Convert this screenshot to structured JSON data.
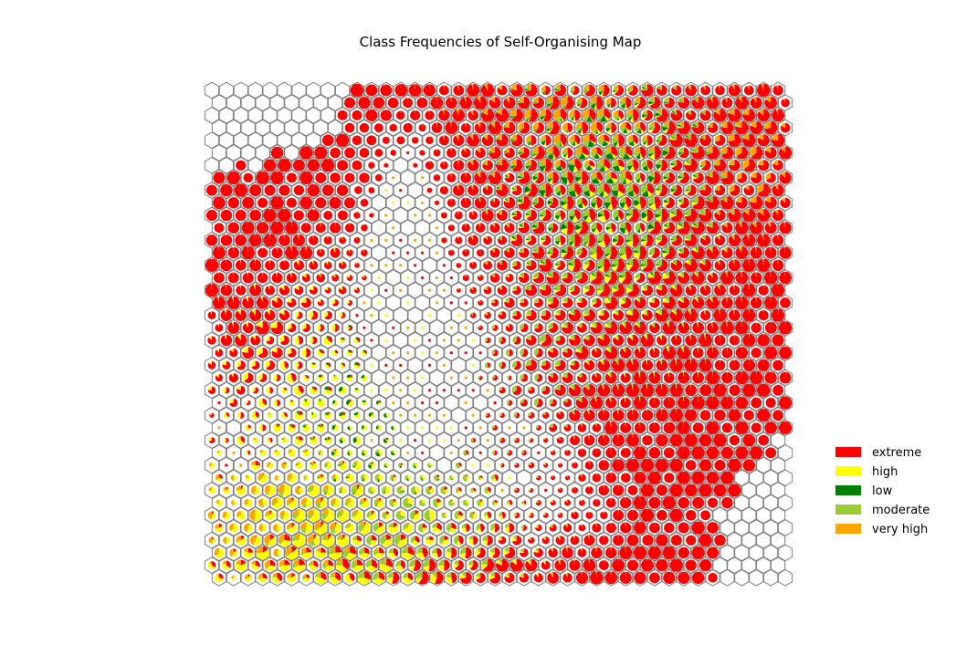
{
  "chart_data": {
    "type": "hexagonal-som-pie-map",
    "title": "Class Frequencies of Self-Organising Map",
    "grid": false,
    "legend_position": "right",
    "classes": [
      {
        "name": "extreme",
        "color": "#ff0000"
      },
      {
        "name": "high",
        "color": "#ffff00"
      },
      {
        "name": "low",
        "color": "#008000"
      },
      {
        "name": "moderate",
        "color": "#9acd32"
      },
      {
        "name": "very high",
        "color": "#ffa500"
      }
    ],
    "hex_outline_color": "#808080",
    "grid_size": {
      "columns": 40,
      "rows": 40
    },
    "pattern_note": "Dense extreme (red) clusters across the top and right; empty or tiny cells in the centre-left; mixed high/moderate/low cells around the centre and bottom-left."
  }
}
